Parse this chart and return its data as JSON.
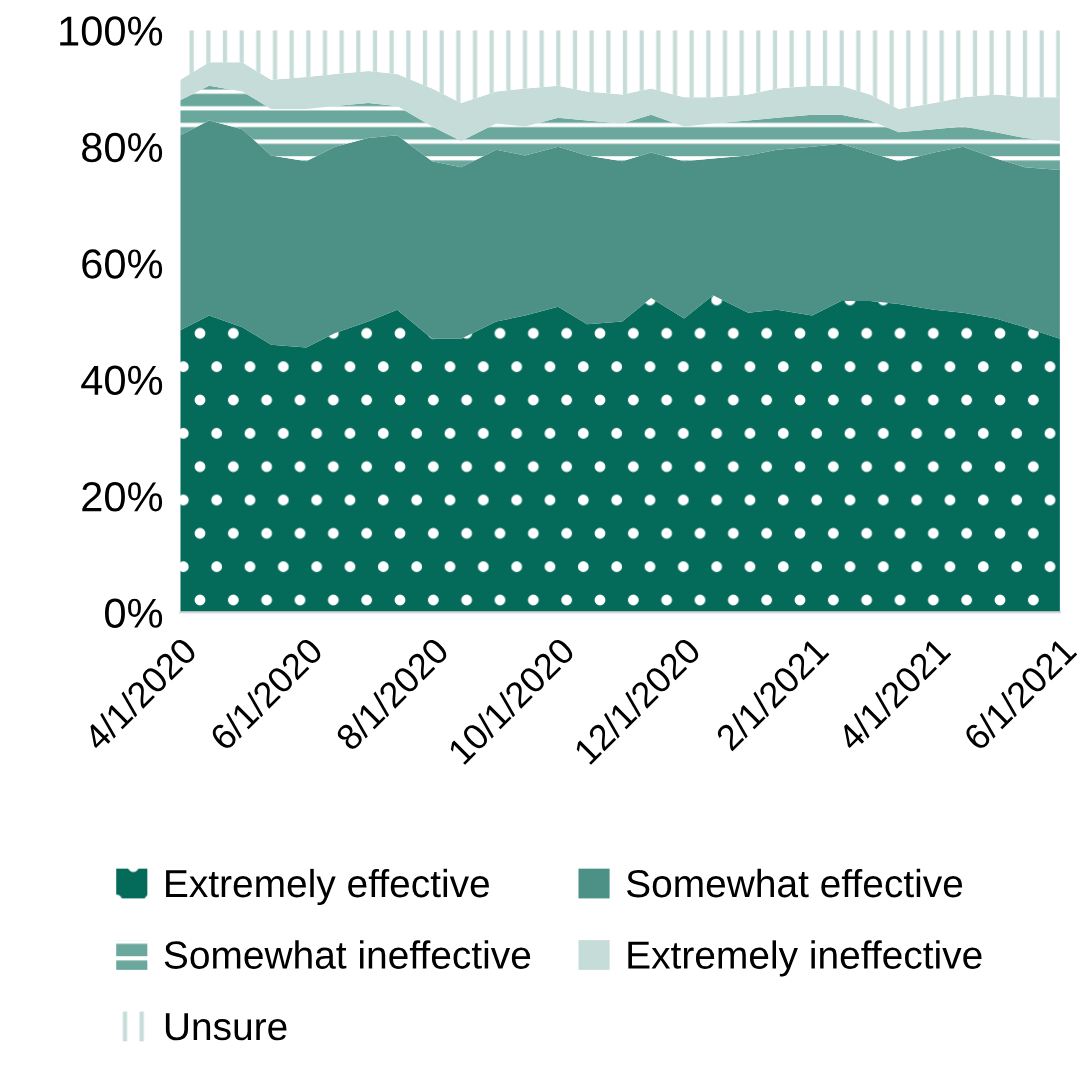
{
  "chart_data": {
    "type": "area",
    "stacked": true,
    "x": [
      "2020-04-01",
      "2020-04-15",
      "2020-05-01",
      "2020-05-15",
      "2020-06-01",
      "2020-06-15",
      "2020-07-01",
      "2020-07-15",
      "2020-08-01",
      "2020-08-15",
      "2020-09-01",
      "2020-09-15",
      "2020-10-01",
      "2020-10-15",
      "2020-11-01",
      "2020-11-15",
      "2020-12-01",
      "2020-12-15",
      "2021-01-01",
      "2021-01-15",
      "2021-02-01",
      "2021-02-15",
      "2021-03-01",
      "2021-03-15",
      "2021-04-01",
      "2021-04-15",
      "2021-05-01",
      "2021-05-15",
      "2021-06-01"
    ],
    "series": [
      {
        "name": "Extremely effective",
        "color": "#046a5a",
        "values": [
          48.5,
          51,
          49,
          46,
          45.5,
          48,
          50,
          52,
          47,
          47,
          50,
          51,
          52.5,
          49.5,
          50,
          54,
          50.5,
          54.5,
          51.5,
          52,
          51,
          53.5,
          53.5,
          53,
          52,
          51.5,
          50.5,
          49,
          47
        ]
      },
      {
        "name": "Somewhat effective",
        "color": "#4d9085",
        "values": [
          33.5,
          33.5,
          34,
          32.5,
          32,
          32,
          31.5,
          30,
          30.5,
          29.5,
          29.5,
          27.5,
          27.5,
          29,
          27.5,
          25,
          27,
          23.5,
          27,
          27.5,
          29,
          27,
          25.5,
          24.5,
          27,
          28.5,
          27.5,
          27.5,
          29
        ]
      },
      {
        "name": "Somewhat ineffective",
        "color": "#6aa79d",
        "values": [
          6,
          6,
          6.5,
          8,
          9,
          7,
          6,
          5,
          6,
          4.5,
          4.5,
          5,
          5,
          6,
          6.5,
          6.5,
          6,
          6,
          6,
          5.5,
          5.5,
          5,
          5.5,
          5,
          4,
          3.5,
          4.5,
          5,
          5
        ]
      },
      {
        "name": "Extremely ineffective",
        "color": "#c5dcd8",
        "values": [
          3.5,
          4,
          5,
          5,
          5.5,
          5.5,
          5.5,
          5.5,
          6.5,
          6.5,
          5.5,
          6.5,
          5.5,
          5,
          5,
          4.5,
          5,
          4.5,
          4.5,
          5,
          5,
          5,
          4.5,
          4,
          4.5,
          5,
          6.5,
          7,
          7.5
        ]
      },
      {
        "name": "Unsure",
        "color": "#c5dcd8",
        "values": [
          8.5,
          5.5,
          5.5,
          8.5,
          8,
          7.5,
          7,
          7.5,
          10,
          12.5,
          10.5,
          10,
          9.5,
          10.5,
          11,
          10,
          11.5,
          11.5,
          11,
          10,
          9.5,
          9.5,
          11,
          13.5,
          12.5,
          11.5,
          11,
          11.5,
          11.5
        ]
      }
    ],
    "xlim": [
      "2020-04-01",
      "2021-06-01"
    ],
    "xticks": [
      {
        "value": "2020-04-01",
        "label": "4/1/2020"
      },
      {
        "value": "2020-06-01",
        "label": "6/1/2020"
      },
      {
        "value": "2020-08-01",
        "label": "8/1/2020"
      },
      {
        "value": "2020-10-01",
        "label": "10/1/2020"
      },
      {
        "value": "2020-12-01",
        "label": "12/1/2020"
      },
      {
        "value": "2021-02-01",
        "label": "2/1/2021"
      },
      {
        "value": "2021-04-01",
        "label": "4/1/2021"
      },
      {
        "value": "2021-06-01",
        "label": "6/1/2021"
      }
    ],
    "ylim": [
      0,
      100
    ],
    "yticks": [
      {
        "value": 0,
        "label": "0%"
      },
      {
        "value": 20,
        "label": "20%"
      },
      {
        "value": 40,
        "label": "40%"
      },
      {
        "value": 60,
        "label": "60%"
      },
      {
        "value": 80,
        "label": "80%"
      },
      {
        "value": 100,
        "label": "100%"
      }
    ],
    "grid": false,
    "legend": "bottom"
  }
}
